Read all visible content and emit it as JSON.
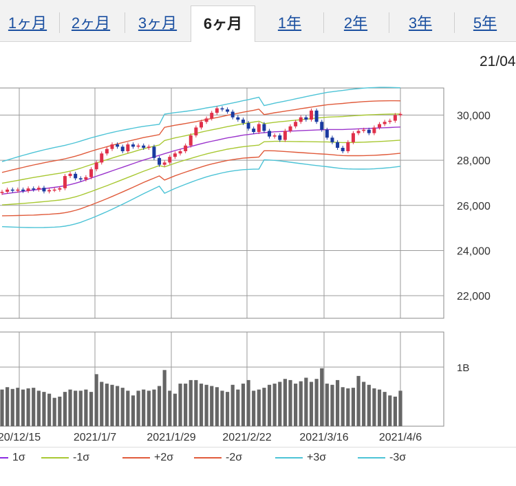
{
  "tabs": [
    {
      "label": "1ヶ月",
      "active": false
    },
    {
      "label": "2ヶ月",
      "active": false
    },
    {
      "label": "3ヶ月",
      "active": false
    },
    {
      "label": "6ヶ月",
      "active": true
    },
    {
      "label": "1年",
      "active": false
    },
    {
      "label": "2年",
      "active": false
    },
    {
      "label": "3年",
      "active": false
    },
    {
      "label": "5年",
      "active": false
    }
  ],
  "date_stamp": "21/04",
  "legend": [
    {
      "label": "1σ",
      "color": "#8a2be2"
    },
    {
      "label": "-1σ",
      "color": "#a8c832"
    },
    {
      "label": "+2σ",
      "color": "#e05a3a"
    },
    {
      "label": "-2σ",
      "color": "#e05a3a"
    },
    {
      "label": "+3σ",
      "color": "#4cc3d6"
    },
    {
      "label": "-3σ",
      "color": "#4cc3d6"
    }
  ],
  "chart_data": {
    "type": "candlestick",
    "ylim": [
      21000,
      31200
    ],
    "yticks": [
      {
        "v": 22000,
        "label": "22,000"
      },
      {
        "v": 24000,
        "label": "24,000"
      },
      {
        "v": 26000,
        "label": "26,000"
      },
      {
        "v": 28000,
        "label": "28,000"
      },
      {
        "v": 30000,
        "label": "30,000"
      }
    ],
    "volume_tick": "1B",
    "xticks": [
      "20/12/15",
      "2021/1/7",
      "2021/1/29",
      "2021/2/22",
      "2021/3/16",
      "2021/4/6"
    ],
    "colors": {
      "up": "#e0304a",
      "down": "#1a3aa0",
      "grid": "#9a9a9a",
      "volume": "#666666",
      "ma": "#9a33cc",
      "s1": "#a8c832",
      "s2": "#e05a3a",
      "s3": "#4cc3d6"
    },
    "close": [
      26600,
      26700,
      26650,
      26700,
      26640,
      26750,
      26700,
      26780,
      26620,
      26680,
      26700,
      26760,
      27300,
      27400,
      27200,
      27150,
      27250,
      27600,
      27900,
      28300,
      28500,
      28700,
      28600,
      28400,
      28700,
      28600,
      28650,
      28550,
      28600,
      28100,
      27800,
      27900,
      28150,
      28300,
      28400,
      28650,
      29100,
      29450,
      29700,
      29850,
      30100,
      30300,
      30250,
      30150,
      29900,
      29800,
      29650,
      29400,
      29250,
      29600,
      29300,
      29050,
      29100,
      28900,
      29300,
      29500,
      29700,
      29900,
      29800,
      30200,
      29700,
      29350,
      29000,
      28800,
      28550,
      28400,
      28800,
      29200,
      29300,
      29350,
      29200,
      29450,
      29600,
      29700,
      29750,
      30000,
      30050
    ],
    "mid": [
      26500,
      26530,
      26560,
      26590,
      26620,
      26650,
      26680,
      26710,
      26740,
      26770,
      26800,
      26830,
      26870,
      26920,
      26980,
      27050,
      27130,
      27210,
      27290,
      27370,
      27450,
      27530,
      27610,
      27690,
      27770,
      27850,
      27930,
      28010,
      28080,
      28150,
      28220,
      28290,
      28360,
      28430,
      28490,
      28550,
      28610,
      28670,
      28730,
      28790,
      28840,
      28890,
      28940,
      28990,
      29030,
      29070,
      29110,
      29140,
      29170,
      29200,
      29220,
      29240,
      29260,
      29270,
      29280,
      29290,
      29300,
      29310,
      29320,
      29330,
      29340,
      29350,
      29360,
      29360,
      29360,
      29360,
      29370,
      29380,
      29390,
      29400,
      29410,
      29420,
      29430,
      29440,
      29450,
      29460,
      29470
    ],
    "volume": [
      0.62,
      0.66,
      0.63,
      0.65,
      0.62,
      0.64,
      0.65,
      0.6,
      0.58,
      0.55,
      0.48,
      0.5,
      0.58,
      0.62,
      0.6,
      0.6,
      0.62,
      0.58,
      0.88,
      0.75,
      0.72,
      0.7,
      0.68,
      0.65,
      0.6,
      0.52,
      0.6,
      0.62,
      0.6,
      0.62,
      0.68,
      0.95,
      0.6,
      0.55,
      0.72,
      0.72,
      0.78,
      0.78,
      0.72,
      0.7,
      0.68,
      0.66,
      0.6,
      0.58,
      0.7,
      0.62,
      0.72,
      0.78,
      0.6,
      0.62,
      0.65,
      0.7,
      0.72,
      0.75,
      0.8,
      0.78,
      0.72,
      0.76,
      0.82,
      0.75,
      0.8,
      0.98,
      0.72,
      0.7,
      0.78,
      0.66,
      0.64,
      0.65,
      0.85,
      0.75,
      0.7,
      0.64,
      0.62,
      0.58,
      0.52,
      0.5,
      0.6
    ]
  }
}
